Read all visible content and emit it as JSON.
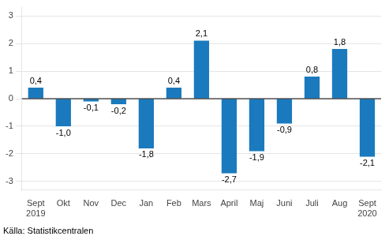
{
  "chart_data": {
    "type": "bar",
    "categories": [
      "Sept\n2019",
      "Okt",
      "Nov",
      "Dec",
      "Jan",
      "Feb",
      "Mars",
      "April",
      "Maj",
      "Juni",
      "Juli",
      "Aug",
      "Sept\n2020"
    ],
    "values": [
      0.4,
      -1.0,
      -0.1,
      -0.2,
      -1.8,
      0.4,
      2.1,
      -2.7,
      -1.9,
      -0.9,
      0.8,
      1.8,
      -2.1
    ],
    "value_labels": [
      "0,4",
      "-1,0",
      "-0,1",
      "-0,2",
      "-1,8",
      "0,4",
      "2,1",
      "-2,7",
      "-1,9",
      "-0,9",
      "0,8",
      "1,8",
      "-2,1"
    ],
    "data_labels": true,
    "color": "#1a7abd",
    "ylim": [
      -3.3,
      3.3
    ],
    "yticks": [
      -3,
      -2,
      -1,
      0,
      1,
      2,
      3
    ],
    "grid": true,
    "annotations": [
      "Källa: Statistikcentralen"
    ]
  }
}
